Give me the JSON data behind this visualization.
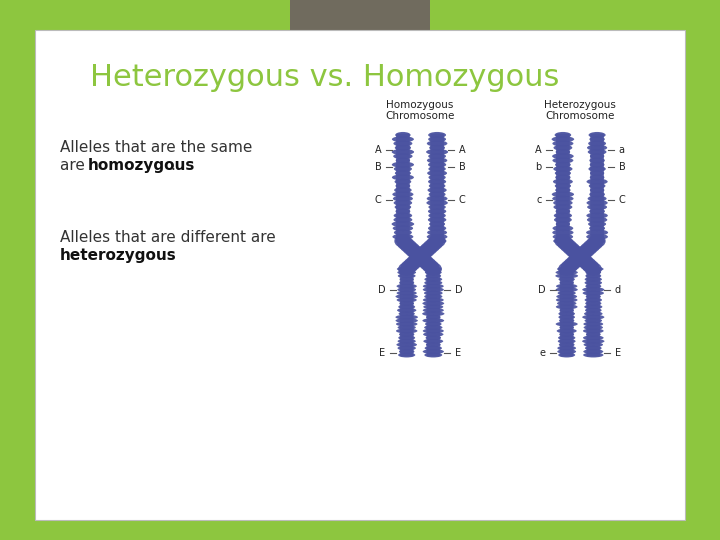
{
  "bg_color": "#8dc63f",
  "slide_bg": "#ffffff",
  "title": "Heterozygous vs. Homozygous",
  "title_color": "#8dc63f",
  "title_fontsize": 22,
  "tab_color": "#706b5e",
  "chrom_color": "#4a52a0",
  "label_fs": 7,
  "hom_labels_left": [
    "A",
    "B",
    "C",
    "D",
    "E"
  ],
  "hom_labels_right": [
    "A",
    "B",
    "C",
    "D",
    "E"
  ],
  "het_labels_left": [
    "A",
    "b",
    "c",
    "D",
    "e"
  ],
  "het_labels_right": [
    "a",
    "B",
    "C",
    "d",
    "E"
  ],
  "label_y_offsets": [
    105,
    88,
    55,
    -35,
    -98
  ]
}
